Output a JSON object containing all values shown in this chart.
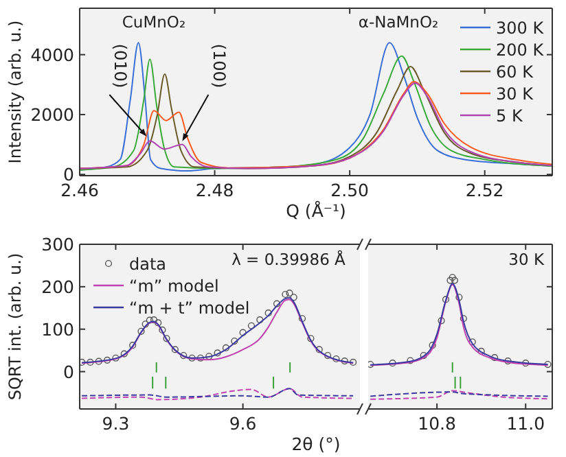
{
  "chart_data": [
    {
      "type": "line",
      "xlabel": "Q (Å⁻¹)",
      "ylabel": "Intensity (arb. u.)",
      "xlim": [
        2.46,
        2.53
      ],
      "ylim": [
        -40,
        5550
      ],
      "xticks": [
        2.46,
        2.48,
        {
          "value": 2.5,
          "label": "2.50"
        },
        2.52
      ],
      "yticks": [
        0,
        2000,
        4000
      ],
      "legend": "top right",
      "annotations": [
        "CuMnO₂",
        "α-NaMnO₂",
        {
          "text": "(010)",
          "x": 2.4699,
          "y": 1270
        },
        {
          "text": "(100)",
          "x": 2.4752,
          "y": 1110
        }
      ],
      "series": [
        {
          "name": "300 K",
          "color": "#3a6fd8",
          "x": [
            2.46,
            2.464,
            2.466,
            2.4675,
            2.4687,
            2.4697,
            2.4705,
            2.472,
            2.476,
            2.48,
            2.49,
            2.495,
            2.5,
            2.503,
            2.5059,
            2.508,
            2.51,
            2.513,
            2.517,
            2.525,
            2.53
          ],
          "values": [
            150,
            250,
            500,
            2500,
            4400,
            2500,
            500,
            200,
            120,
            200,
            250,
            350,
            900,
            2000,
            4400,
            3300,
            1900,
            800,
            500,
            350,
            280
          ]
        },
        {
          "name": "200 K",
          "color": "#3aaa3a",
          "x": [
            2.46,
            2.465,
            2.468,
            2.4695,
            2.4704,
            2.4714,
            2.4725,
            2.474,
            2.48,
            2.49,
            2.498,
            2.502,
            2.505,
            2.5077,
            2.5095,
            2.512,
            2.515,
            2.52,
            2.53
          ],
          "values": [
            150,
            250,
            800,
            2500,
            3850,
            2300,
            900,
            250,
            200,
            250,
            500,
            1200,
            2700,
            3950,
            3100,
            1600,
            800,
            500,
            280
          ]
        },
        {
          "name": "60 K",
          "color": "#6b5a2a",
          "x": [
            2.46,
            2.467,
            2.47,
            2.4715,
            2.4726,
            2.4736,
            2.475,
            2.477,
            2.485,
            2.495,
            2.5,
            2.504,
            2.507,
            2.509,
            2.511,
            2.514,
            2.518,
            2.525,
            2.53
          ],
          "values": [
            200,
            250,
            800,
            2000,
            3350,
            2200,
            800,
            250,
            200,
            300,
            600,
            1400,
            2800,
            3600,
            2800,
            1400,
            700,
            400,
            300
          ]
        },
        {
          "name": "30 K",
          "color": "#ff5a1f",
          "x": [
            2.46,
            2.467,
            2.4695,
            2.471,
            2.4728,
            2.4747,
            2.476,
            2.478,
            2.482,
            2.495,
            2.5,
            2.505,
            2.508,
            2.5095,
            2.5115,
            2.514,
            2.518,
            2.525,
            2.53
          ],
          "values": [
            200,
            300,
            1000,
            2130,
            1800,
            2080,
            1200,
            400,
            220,
            300,
            550,
            1500,
            2700,
            3100,
            2700,
            1700,
            900,
            480,
            340
          ]
        },
        {
          "name": "5 K",
          "color": "#b040b0",
          "x": [
            2.46,
            2.467,
            2.469,
            2.4704,
            2.4725,
            2.4752,
            2.4765,
            2.479,
            2.485,
            2.495,
            2.5,
            2.505,
            2.508,
            2.5097,
            2.5115,
            2.514,
            2.518,
            2.525,
            2.53
          ],
          "values": [
            200,
            300,
            700,
            1120,
            850,
            1000,
            600,
            250,
            200,
            300,
            550,
            1450,
            2650,
            3050,
            2600,
            1500,
            750,
            400,
            300
          ]
        }
      ]
    },
    {
      "type": "line",
      "ylabel": "SQRT int. (arb. u.)",
      "xlabel": "2θ (°)",
      "xlim": [
        9.215,
        9.876
      ],
      "ylim": [
        -88,
        300
      ],
      "xticks": [
        9.3,
        9.6
      ],
      "yticks": [
        0,
        100,
        200,
        300
      ],
      "legend": "top left",
      "annotations": [
        "λ = 0.39986 Å"
      ],
      "series": [
        {
          "name": "data",
          "type": "scatter",
          "marker": "circle",
          "color": "#555555",
          "x": [
            9.22,
            9.24,
            9.26,
            9.28,
            9.3,
            9.32,
            9.34,
            9.36,
            9.37,
            9.38,
            9.39,
            9.4,
            9.41,
            9.42,
            9.44,
            9.46,
            9.48,
            9.5,
            9.52,
            9.54,
            9.56,
            9.58,
            9.6,
            9.62,
            9.64,
            9.66,
            9.68,
            9.7,
            9.71,
            9.72,
            9.74,
            9.76,
            9.78,
            9.8,
            9.82,
            9.84,
            9.86
          ],
          "values": [
            22,
            22,
            24,
            27,
            32,
            42,
            62,
            95,
            112,
            121,
            122,
            115,
            98,
            78,
            52,
            38,
            32,
            32,
            36,
            44,
            56,
            72,
            92,
            108,
            122,
            138,
            160,
            182,
            185,
            175,
            125,
            78,
            52,
            38,
            30,
            25,
            22
          ]
        },
        {
          "name": "“m” model",
          "color": "#c040b0",
          "x": [
            9.22,
            9.3,
            9.34,
            9.36,
            9.38,
            9.39,
            9.4,
            9.42,
            9.44,
            9.48,
            9.52,
            9.56,
            9.6,
            9.64,
            9.66,
            9.68,
            9.7,
            9.71,
            9.72,
            9.74,
            9.76,
            9.8,
            9.86
          ],
          "values": [
            20,
            30,
            58,
            92,
            115,
            117,
            110,
            75,
            50,
            30,
            28,
            35,
            52,
            78,
            105,
            140,
            168,
            170,
            160,
            115,
            72,
            35,
            20
          ]
        },
        {
          "name": "“m + t” model",
          "color": "#3a3aa0",
          "x": [
            9.22,
            9.3,
            9.34,
            9.36,
            9.38,
            9.39,
            9.4,
            9.42,
            9.44,
            9.48,
            9.52,
            9.56,
            9.6,
            9.64,
            9.66,
            9.68,
            9.7,
            9.71,
            9.72,
            9.74,
            9.76,
            9.8,
            9.86
          ],
          "values": [
            21,
            31,
            60,
            93,
            116,
            118,
            111,
            76,
            51,
            32,
            35,
            52,
            85,
            115,
            132,
            155,
            172,
            174,
            164,
            118,
            74,
            36,
            21
          ]
        },
        {
          "color": "#c040b0",
          "line_style": "dashed",
          "x": [
            9.22,
            9.36,
            9.4,
            9.5,
            9.58,
            9.62,
            9.66,
            9.71,
            9.74,
            9.86
          ],
          "values": [
            -63,
            -60,
            -66,
            -60,
            -45,
            -42,
            -60,
            -40,
            -60,
            -63
          ]
        },
        {
          "color": "#3a3aa0",
          "line_style": "dashed",
          "x": [
            9.22,
            9.38,
            9.42,
            9.6,
            9.66,
            9.71,
            9.73,
            9.86
          ],
          "values": [
            -57,
            -55,
            -60,
            -57,
            -60,
            -40,
            -55,
            -57
          ]
        },
        {
          "type": "bar",
          "color": "#3aa03a",
          "x": [
            9.387,
            9.396,
            9.418,
            9.672,
            9.711
          ],
          "base": [
            -40,
            -2,
            -40,
            -40,
            -2
          ],
          "values": [
            28,
            24,
            28,
            28,
            24
          ]
        }
      ]
    },
    {
      "type": "line",
      "xlim": [
        10.645,
        11.06
      ],
      "ylim": [
        -88,
        300
      ],
      "xticks": [
        10.8,
        {
          "value": 11,
          "label": "11.0"
        }
      ],
      "yticks": [
        0,
        100,
        200,
        300
      ],
      "tick_labels": "x",
      "annotations": [
        "30 K"
      ],
      "series": [
        {
          "type": "scatter",
          "marker": "circle",
          "color": "#555555",
          "x": [
            10.65,
            10.7,
            10.74,
            10.77,
            10.79,
            10.81,
            10.82,
            10.83,
            10.835,
            10.84,
            10.85,
            10.86,
            10.88,
            10.9,
            10.93,
            10.96,
            11,
            11.05
          ],
          "values": [
            17,
            20,
            26,
            38,
            62,
            120,
            170,
            215,
            222,
            215,
            175,
            125,
            70,
            48,
            33,
            25,
            20,
            17
          ]
        },
        {
          "color": "#c040b0",
          "x": [
            10.65,
            10.74,
            10.78,
            10.8,
            10.82,
            10.835,
            10.85,
            10.86,
            10.88,
            10.92,
            10.96,
            11.05
          ],
          "values": [
            15,
            22,
            40,
            80,
            165,
            205,
            160,
            105,
            58,
            32,
            22,
            15
          ]
        },
        {
          "color": "#3a3aa0",
          "x": [
            10.65,
            10.74,
            10.78,
            10.8,
            10.82,
            10.835,
            10.85,
            10.86,
            10.88,
            10.92,
            10.96,
            11.05
          ],
          "values": [
            16,
            24,
            45,
            88,
            168,
            207,
            168,
            118,
            66,
            36,
            25,
            17
          ]
        },
        {
          "color": "#c040b0",
          "line_style": "dashed",
          "x": [
            10.65,
            10.8,
            10.835,
            10.87,
            10.95,
            11.05
          ],
          "values": [
            -65,
            -60,
            -45,
            -50,
            -60,
            -64
          ]
        },
        {
          "color": "#3a3aa0",
          "line_style": "dashed",
          "x": [
            10.65,
            10.835,
            10.86,
            11.05
          ],
          "values": [
            -58,
            -48,
            -52,
            -58
          ]
        },
        {
          "type": "bar",
          "color": "#3aa03a",
          "x": [
            10.835,
            10.841,
            10.853
          ],
          "base": [
            -2,
            -40,
            -40
          ],
          "values": [
            24,
            28,
            28
          ]
        }
      ]
    }
  ]
}
